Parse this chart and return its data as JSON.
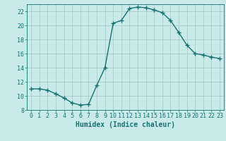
{
  "x": [
    0,
    1,
    2,
    3,
    4,
    5,
    6,
    7,
    8,
    9,
    10,
    11,
    12,
    13,
    14,
    15,
    16,
    17,
    18,
    19,
    20,
    21,
    22,
    23
  ],
  "y": [
    11.0,
    11.0,
    10.8,
    10.3,
    9.7,
    9.0,
    8.7,
    8.8,
    11.5,
    14.0,
    20.3,
    20.7,
    22.4,
    22.6,
    22.5,
    22.2,
    21.8,
    20.7,
    19.0,
    17.2,
    16.0,
    15.8,
    15.5,
    15.3
  ],
  "line_color": "#1a7070",
  "marker": "+",
  "marker_size": 4,
  "bg_color": "#c8eaea",
  "grid_color": "#a8cccc",
  "xlabel": "Humidex (Indice chaleur)",
  "ylim": [
    8,
    23
  ],
  "xlim": [
    -0.5,
    23.5
  ],
  "yticks": [
    8,
    10,
    12,
    14,
    16,
    18,
    20,
    22
  ],
  "xticks": [
    0,
    1,
    2,
    3,
    4,
    5,
    6,
    7,
    8,
    9,
    10,
    11,
    12,
    13,
    14,
    15,
    16,
    17,
    18,
    19,
    20,
    21,
    22,
    23
  ],
  "xlabel_fontsize": 7,
  "tick_fontsize": 6,
  "linewidth": 1.0
}
